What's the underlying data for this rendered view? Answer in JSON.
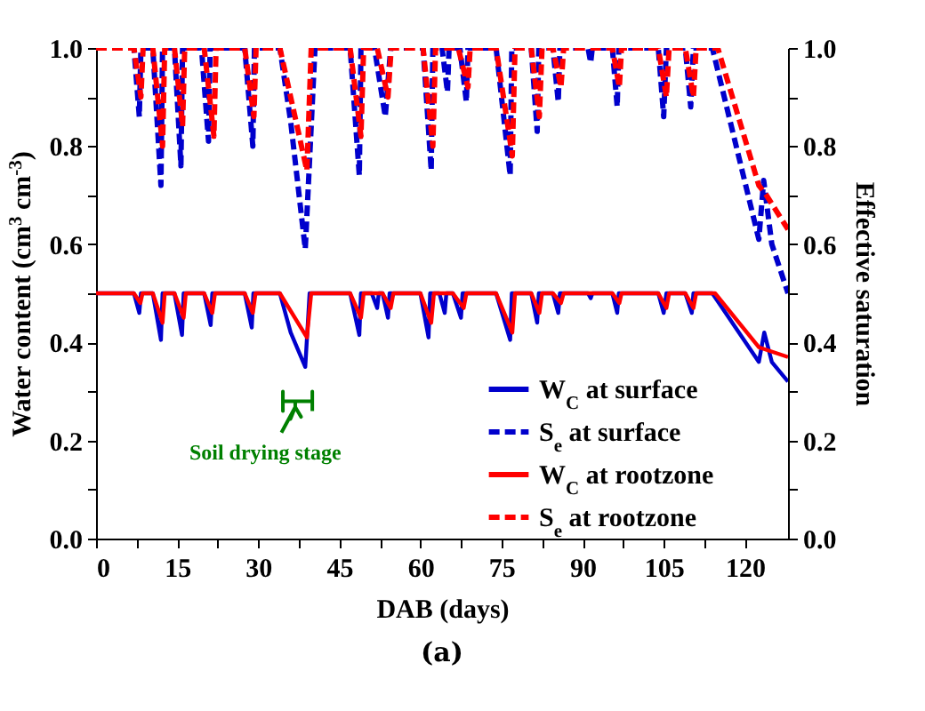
{
  "chart_data": {
    "type": "line",
    "title": "(a)",
    "xlabel": "DAB (days)",
    "ylabel": "Water content (cm$^{3}$ cm$^{-3}$)",
    "y2label": "Effective saturation",
    "xlim": [
      0,
      128
    ],
    "xticks": [
      0,
      {
        "value": 7.5,
        "label": null
      },
      15,
      {
        "value": 22.5,
        "label": null
      },
      30,
      {
        "value": 37.5,
        "label": null
      },
      45,
      {
        "value": 52.5,
        "label": null
      },
      60,
      {
        "value": 67.5,
        "label": null
      },
      75,
      {
        "value": 82.5,
        "label": null
      },
      90,
      {
        "value": 97.5,
        "label": null
      },
      105,
      {
        "value": 112.5,
        "label": null
      },
      120
    ],
    "ylim": [
      0,
      1
    ],
    "yticks": [
      {
        "value": 0,
        "label": "0.0"
      },
      {
        "value": 0.1,
        "label": null
      },
      0.2,
      {
        "value": 0.3,
        "label": null
      },
      0.4,
      {
        "value": 0.5,
        "label": null
      },
      0.6,
      {
        "value": 0.7,
        "label": null
      },
      0.8,
      {
        "value": 0.9,
        "label": null
      },
      {
        "value": 1,
        "label": "1.0"
      }
    ],
    "y2lim": [
      0,
      1
    ],
    "y2ticks": [
      {
        "value": 0,
        "label": "0.0"
      },
      {
        "value": 0.1,
        "label": null
      },
      0.2,
      {
        "value": 0.3,
        "label": null
      },
      0.4,
      {
        "value": 0.5,
        "label": null
      },
      0.6,
      {
        "value": 0.7,
        "label": null
      },
      0.8,
      {
        "value": 0.9,
        "label": null
      },
      {
        "value": 1,
        "label": "1.0"
      }
    ],
    "legend": "bottom right",
    "grid": false,
    "annotations": [
      "Soil drying stage"
    ],
    "series": [
      {
        "name": "W$_{C}$ at surface",
        "color": "#0000cc",
        "line_style": "solid",
        "x": [
          0,
          7,
          8,
          8.3,
          10.5,
          12,
          12.3,
          14.5,
          15.9,
          16.2,
          20,
          21.2,
          21.5,
          27.5,
          28.8,
          29.1,
          34,
          36,
          38.7,
          39.5,
          47,
          48.7,
          49,
          51,
          52,
          52.3,
          53,
          54,
          54.3,
          60,
          61.5,
          61.8,
          63.5,
          64.5,
          64.8,
          66,
          67.5,
          67.8,
          74,
          76.6,
          76.9,
          80.5,
          81.6,
          81.9,
          84.5,
          85.5,
          85.8,
          91,
          91.5,
          91.8,
          95.5,
          96.4,
          96.7,
          104,
          105,
          105.5,
          109,
          110.2,
          110.5,
          114,
          122.6,
          123.6,
          125,
          128
        ],
        "values": [
          0.5,
          0.5,
          0.46,
          0.5,
          0.5,
          0.405,
          0.5,
          0.5,
          0.415,
          0.5,
          0.5,
          0.435,
          0.5,
          0.5,
          0.43,
          0.5,
          0.5,
          0.42,
          0.35,
          0.5,
          0.5,
          0.415,
          0.5,
          0.5,
          0.47,
          0.5,
          0.5,
          0.45,
          0.5,
          0.5,
          0.41,
          0.5,
          0.5,
          0.46,
          0.5,
          0.5,
          0.45,
          0.5,
          0.5,
          0.405,
          0.5,
          0.5,
          0.44,
          0.5,
          0.5,
          0.46,
          0.5,
          0.5,
          0.49,
          0.5,
          0.5,
          0.46,
          0.5,
          0.5,
          0.46,
          0.5,
          0.5,
          0.46,
          0.5,
          0.5,
          0.36,
          0.42,
          0.36,
          0.32
        ]
      },
      {
        "name": "S$_{e}$ at surface",
        "color": "#0000cc",
        "line_style": "dashed",
        "axis": "y2",
        "x": [
          0,
          7,
          8,
          8.3,
          10.5,
          12,
          12.3,
          14.5,
          15.7,
          16,
          19.5,
          20.8,
          21.1,
          27.5,
          29,
          29.3,
          34,
          36,
          38.7,
          40.5,
          47,
          48.7,
          49,
          51.5,
          53.5,
          54.5,
          60.5,
          62,
          62.3,
          64,
          65,
          65.3,
          67.3,
          68.5,
          68.8,
          74,
          76.6,
          76.9,
          80.5,
          81.6,
          81.9,
          84.5,
          85.5,
          85.8,
          91,
          91.5,
          91.8,
          95.5,
          96.4,
          96.7,
          104,
          105,
          105.5,
          109,
          110,
          110.5,
          114,
          122.6,
          123.5,
          125,
          128
        ],
        "values": [
          1,
          1,
          0.86,
          1,
          1,
          0.72,
          1,
          1,
          0.76,
          1,
          1,
          0.81,
          1,
          1,
          0.8,
          1,
          1,
          0.85,
          0.59,
          1,
          1,
          0.74,
          1,
          1,
          0.86,
          1,
          1,
          0.75,
          1,
          1,
          0.91,
          1,
          1,
          0.89,
          1,
          1,
          0.74,
          1,
          1,
          0.83,
          1,
          1,
          0.89,
          1,
          1,
          0.97,
          1,
          1,
          0.88,
          1,
          1,
          0.86,
          1,
          1,
          0.88,
          1,
          1,
          0.61,
          0.73,
          0.6,
          0.5
        ]
      },
      {
        "name": "W$_{C}$ at rootzone",
        "color": "#ff0000",
        "line_style": "solid",
        "x": [
          0,
          7,
          8.2,
          8.6,
          10.5,
          12.3,
          12.7,
          14.5,
          16.2,
          16.6,
          20,
          21.5,
          22,
          27.5,
          29,
          29.5,
          34,
          39,
          39.8,
          47,
          49,
          49.5,
          53,
          54.5,
          55,
          60,
          62,
          62.5,
          66,
          68,
          68.5,
          74,
          77,
          77.5,
          80.5,
          82,
          82.5,
          84.5,
          86,
          86.5,
          95.5,
          96.8,
          97.2,
          104,
          105.5,
          106,
          109,
          110.5,
          111,
          114.5,
          122.6,
          128
        ],
        "values": [
          0.5,
          0.5,
          0.48,
          0.5,
          0.5,
          0.44,
          0.5,
          0.5,
          0.45,
          0.5,
          0.5,
          0.46,
          0.5,
          0.5,
          0.46,
          0.5,
          0.5,
          0.41,
          0.5,
          0.5,
          0.45,
          0.5,
          0.5,
          0.47,
          0.5,
          0.5,
          0.44,
          0.5,
          0.5,
          0.47,
          0.5,
          0.5,
          0.42,
          0.5,
          0.5,
          0.46,
          0.5,
          0.5,
          0.48,
          0.5,
          0.5,
          0.48,
          0.5,
          0.5,
          0.47,
          0.5,
          0.5,
          0.47,
          0.5,
          0.5,
          0.39,
          0.37
        ]
      },
      {
        "name": "S$_{e}$ at rootzone",
        "color": "#ff0000",
        "line_style": "dashed",
        "axis": "y2",
        "x": [
          0,
          7,
          8.3,
          8.7,
          10.5,
          12.3,
          12.7,
          14.5,
          16,
          16.4,
          20,
          21.8,
          22.2,
          27.5,
          29.2,
          29.6,
          34,
          39,
          39.8,
          47,
          49,
          49.5,
          52,
          54,
          54.6,
          60.5,
          62.3,
          62.8,
          67,
          68.8,
          69.2,
          74,
          77,
          77.5,
          80.5,
          82,
          82.5,
          84.5,
          86,
          86.5,
          95.5,
          96.8,
          97.2,
          104,
          105.5,
          106,
          109,
          110.5,
          111,
          115,
          122.6,
          124,
          128
        ],
        "values": [
          1,
          1,
          0.9,
          1,
          1,
          0.8,
          1,
          1,
          0.84,
          1,
          1,
          0.82,
          1,
          1,
          0.86,
          1,
          1,
          0.75,
          1,
          1,
          0.82,
          1,
          1,
          0.9,
          1,
          1,
          0.8,
          1,
          1,
          0.92,
          1,
          1,
          0.78,
          1,
          1,
          0.86,
          1,
          1,
          0.92,
          1,
          1,
          0.92,
          1,
          1,
          0.9,
          1,
          1,
          0.9,
          1,
          1,
          0.72,
          0.7,
          0.63
        ]
      }
    ]
  }
}
